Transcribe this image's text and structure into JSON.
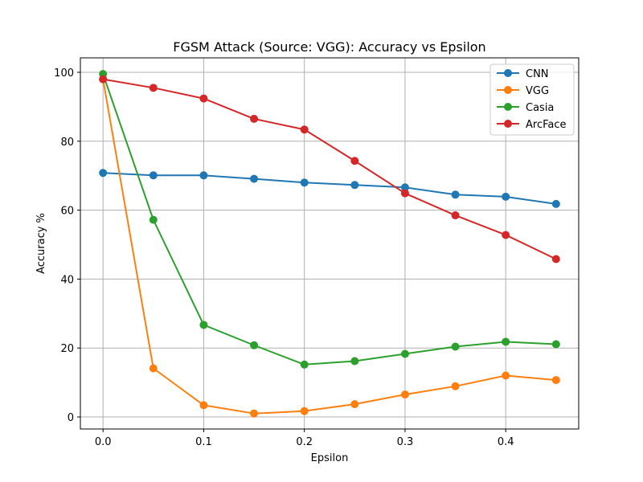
{
  "chart_data": {
    "type": "line",
    "title": "FGSM Attack (Source: VGG): Accuracy vs Epsilon",
    "xlabel": "Epsilon",
    "ylabel": "Accuracy %",
    "xlim": [
      -0.0225,
      0.4725
    ],
    "ylim": [
      -3.5,
      104.2
    ],
    "x": [
      0.0,
      0.05,
      0.1,
      0.15,
      0.2,
      0.25,
      0.3,
      0.35,
      0.4,
      0.45
    ],
    "xticks": [
      0.0,
      0.1,
      0.2,
      0.3,
      0.4
    ],
    "xtick_labels": [
      "0.0",
      "0.1",
      "0.2",
      "0.3",
      "0.4"
    ],
    "yticks": [
      0,
      20,
      40,
      60,
      80,
      100
    ],
    "ytick_labels": [
      "0",
      "20",
      "40",
      "60",
      "80",
      "100"
    ],
    "grid": true,
    "legend_position": "top-right",
    "series": [
      {
        "name": "CNN",
        "color": "#1f77b4",
        "values": [
          70.8,
          70.1,
          70.1,
          69.1,
          68.0,
          67.3,
          66.6,
          64.5,
          63.9,
          61.8
        ]
      },
      {
        "name": "VGG",
        "color": "#ff7f0e",
        "values": [
          98.0,
          14.1,
          3.4,
          1.0,
          1.7,
          3.7,
          6.5,
          8.9,
          12.0,
          10.7
        ]
      },
      {
        "name": "Casia",
        "color": "#2ca02c",
        "values": [
          99.5,
          57.2,
          26.7,
          20.8,
          15.2,
          16.2,
          18.3,
          20.4,
          21.8,
          21.1
        ]
      },
      {
        "name": "ArcFace",
        "color": "#d62728",
        "values": [
          98.0,
          95.5,
          92.4,
          86.5,
          83.4,
          74.3,
          64.9,
          58.5,
          52.8,
          45.8
        ]
      }
    ]
  }
}
